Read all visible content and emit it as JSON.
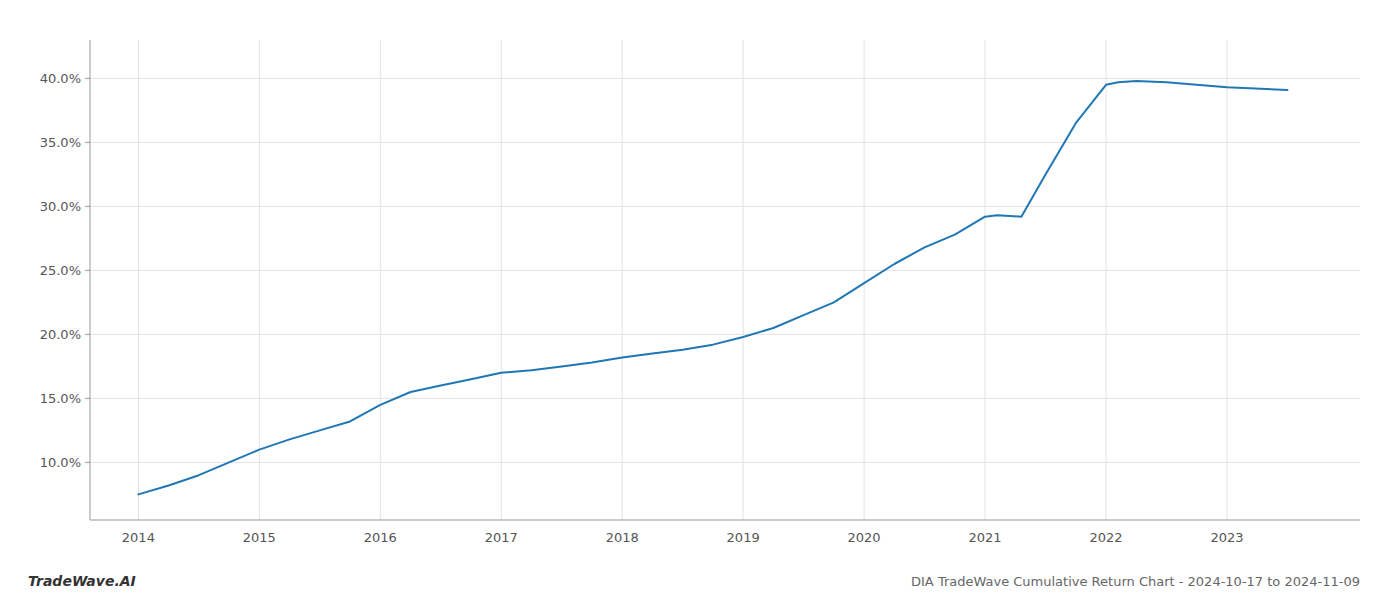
{
  "chart_data": {
    "type": "line",
    "title": "DIA TradeWave Cumulative Return Chart - 2024-10-17 to 2024-11-09",
    "annotations": [
      "TradeWave.AI"
    ],
    "x": [
      2014.0,
      2014.25,
      2014.5,
      2014.75,
      2015.0,
      2015.25,
      2015.5,
      2015.75,
      2016.0,
      2016.25,
      2016.5,
      2016.75,
      2017.0,
      2017.25,
      2017.5,
      2017.75,
      2018.0,
      2018.25,
      2018.5,
      2018.75,
      2019.0,
      2019.25,
      2019.5,
      2019.75,
      2020.0,
      2020.25,
      2020.5,
      2020.75,
      2021.0,
      2021.1,
      2021.3,
      2021.5,
      2021.75,
      2022.0,
      2022.1,
      2022.25,
      2022.5,
      2022.75,
      2023.0,
      2023.5
    ],
    "values": [
      7.5,
      8.2,
      9.0,
      10.0,
      11.0,
      11.8,
      12.5,
      13.2,
      14.5,
      15.5,
      16.0,
      16.5,
      17.0,
      17.2,
      17.5,
      17.8,
      18.2,
      18.5,
      18.8,
      19.2,
      19.8,
      20.5,
      21.5,
      22.5,
      24.0,
      25.5,
      26.8,
      27.8,
      29.2,
      29.3,
      29.2,
      32.5,
      36.5,
      39.5,
      39.7,
      39.8,
      39.7,
      39.5,
      39.3,
      39.1
    ],
    "color": "#1f77b4",
    "xlim": [
      2013.6,
      2024.1
    ],
    "ylim": [
      5.5,
      43.0
    ],
    "xticks": [
      2014,
      2015,
      2016,
      2017,
      2018,
      2019,
      2020,
      2021,
      2022,
      2023
    ],
    "yticks": [
      {
        "value": 10.0,
        "label": "10.0%"
      },
      {
        "value": 15.0,
        "label": "15.0%"
      },
      {
        "value": 20.0,
        "label": "20.0%"
      },
      {
        "value": 25.0,
        "label": "25.0%"
      },
      {
        "value": 30.0,
        "label": "30.0%"
      },
      {
        "value": 35.0,
        "label": "35.0%"
      },
      {
        "value": 40.0,
        "label": "40.0%"
      }
    ],
    "grid": true
  }
}
